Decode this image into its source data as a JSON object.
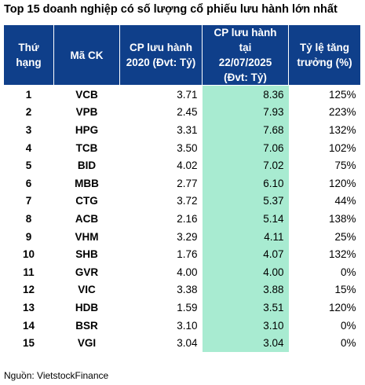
{
  "title": "Top 15 doanh nghiệp có số lượng cổ phiếu lưu hành lớn nhất",
  "headers": {
    "rank": "Thứ\nhạng",
    "code": "Mã CK",
    "cp2020": "CP lưu hành\n2020 (Đvt: Tỷ)",
    "cp2025": "CP lưu hành tại\n22/07/2025\n(Đvt: Tỷ)",
    "growth": "Tỷ lệ tăng\ntrưởng (%)"
  },
  "rows": [
    {
      "rank": "1",
      "code": "VCB",
      "cp2020": "3.71",
      "cp2025": "8.36",
      "growth": "125%"
    },
    {
      "rank": "2",
      "code": "VPB",
      "cp2020": "2.45",
      "cp2025": "7.93",
      "growth": "223%"
    },
    {
      "rank": "3",
      "code": "HPG",
      "cp2020": "3.31",
      "cp2025": "7.68",
      "growth": "132%"
    },
    {
      "rank": "4",
      "code": "TCB",
      "cp2020": "3.50",
      "cp2025": "7.06",
      "growth": "102%"
    },
    {
      "rank": "5",
      "code": "BID",
      "cp2020": "4.02",
      "cp2025": "7.02",
      "growth": "75%"
    },
    {
      "rank": "6",
      "code": "MBB",
      "cp2020": "2.77",
      "cp2025": "6.10",
      "growth": "120%"
    },
    {
      "rank": "7",
      "code": "CTG",
      "cp2020": "3.72",
      "cp2025": "5.37",
      "growth": "44%"
    },
    {
      "rank": "8",
      "code": "ACB",
      "cp2020": "2.16",
      "cp2025": "5.14",
      "growth": "138%"
    },
    {
      "rank": "9",
      "code": "VHM",
      "cp2020": "3.29",
      "cp2025": "4.11",
      "growth": "25%"
    },
    {
      "rank": "10",
      "code": "SHB",
      "cp2020": "1.76",
      "cp2025": "4.07",
      "growth": "132%"
    },
    {
      "rank": "11",
      "code": "GVR",
      "cp2020": "4.00",
      "cp2025": "4.00",
      "growth": "0%"
    },
    {
      "rank": "12",
      "code": "VIC",
      "cp2020": "3.38",
      "cp2025": "3.88",
      "growth": "15%"
    },
    {
      "rank": "13",
      "code": "HDB",
      "cp2020": "1.59",
      "cp2025": "3.51",
      "growth": "120%"
    },
    {
      "rank": "14",
      "code": "BSR",
      "cp2020": "3.10",
      "cp2025": "3.10",
      "growth": "0%"
    },
    {
      "rank": "15",
      "code": "VGI",
      "cp2020": "3.04",
      "cp2025": "3.04",
      "growth": "0%"
    }
  ],
  "source": "Nguồn: VietstockFinance",
  "colors": {
    "header_bg": "#0f3f8a",
    "highlight": "#a8ebd1"
  }
}
